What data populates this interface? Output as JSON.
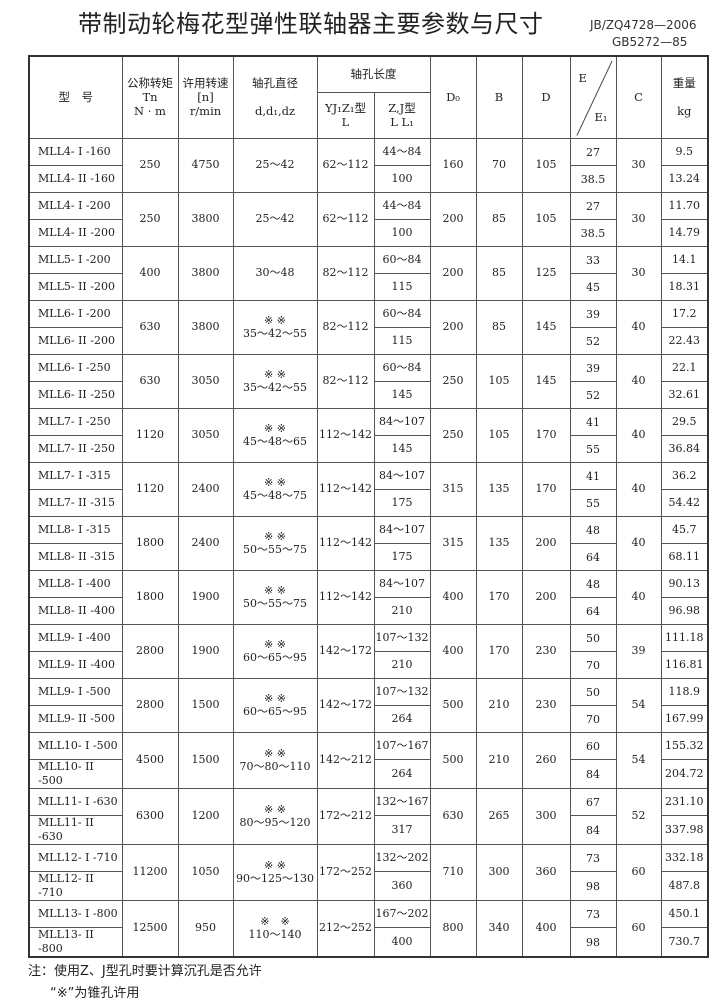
{
  "title": "带制动轮梅花型弹性联轴器主要参数与尺寸",
  "standards": [
    "JB/ZQ4728—2006",
    "GB5272—85"
  ],
  "headers": {
    "model": "型　号",
    "torque": [
      "公称转矩",
      "Tn",
      "N · m"
    ],
    "speed": [
      "许用转速",
      "[n]",
      "r/min"
    ],
    "bore": [
      "轴孔直径",
      "d,d₁,dz"
    ],
    "length": "轴孔长度",
    "yj": [
      "YJ₁Z₁型",
      "L"
    ],
    "zj": [
      "Z,J型",
      "L L₁"
    ],
    "d0": "D₀",
    "b": "B",
    "d": "D",
    "e": [
      "E",
      "E₁"
    ],
    "c": "C",
    "weight": [
      "重量",
      "kg"
    ]
  },
  "groups": [
    {
      "models": [
        "MLL4- I -160",
        "MLL4- II -160"
      ],
      "torque": "250",
      "speed": "4750",
      "bore_mark": "",
      "bore": "25～42",
      "yj": "62～112",
      "zj": [
        "44～84",
        "100"
      ],
      "d0": "160",
      "b": "70",
      "d": "105",
      "e": [
        "27",
        "38.5"
      ],
      "c": "30",
      "weight": [
        "9.5",
        "13.24"
      ]
    },
    {
      "models": [
        "MLL4- I -200",
        "MLL4- II -200"
      ],
      "torque": "250",
      "speed": "3800",
      "bore_mark": "",
      "bore": "25～42",
      "yj": "62～112",
      "zj": [
        "44～84",
        "100"
      ],
      "d0": "200",
      "b": "85",
      "d": "105",
      "e": [
        "27",
        "38.5"
      ],
      "c": "30",
      "weight": [
        "11.70",
        "14.79"
      ]
    },
    {
      "models": [
        "MLL5- I -200",
        "MLL5- II -200"
      ],
      "torque": "400",
      "speed": "3800",
      "bore_mark": "",
      "bore": "30～48",
      "yj": "82～112",
      "zj": [
        "60～84",
        "115"
      ],
      "d0": "200",
      "b": "85",
      "d": "125",
      "e": [
        "33",
        "45"
      ],
      "c": "30",
      "weight": [
        "14.1",
        "18.31"
      ]
    },
    {
      "models": [
        "MLL6- I -200",
        "MLL6- II -200"
      ],
      "torque": "630",
      "speed": "3800",
      "bore_mark": "※ ※",
      "bore": "35～42～55",
      "yj": "82～112",
      "zj": [
        "60～84",
        "115"
      ],
      "d0": "200",
      "b": "85",
      "d": "145",
      "e": [
        "39",
        "52"
      ],
      "c": "40",
      "weight": [
        "17.2",
        "22.43"
      ]
    },
    {
      "models": [
        "MLL6- I -250",
        "MLL6- II -250"
      ],
      "torque": "630",
      "speed": "3050",
      "bore_mark": "※ ※",
      "bore": "35～42～55",
      "yj": "82～112",
      "zj": [
        "60～84",
        "145"
      ],
      "d0": "250",
      "b": "105",
      "d": "145",
      "e": [
        "39",
        "52"
      ],
      "c": "40",
      "weight": [
        "22.1",
        "32.61"
      ]
    },
    {
      "models": [
        "MLL7- I -250",
        "MLL7- II -250"
      ],
      "torque": "1120",
      "speed": "3050",
      "bore_mark": "※ ※",
      "bore": "45～48～65",
      "yj": "112～142",
      "zj": [
        "84～107",
        "145"
      ],
      "d0": "250",
      "b": "105",
      "d": "170",
      "e": [
        "41",
        "55"
      ],
      "c": "40",
      "weight": [
        "29.5",
        "36.84"
      ]
    },
    {
      "models": [
        "MLL7- I -315",
        "MLL7- II -315"
      ],
      "torque": "1120",
      "speed": "2400",
      "bore_mark": "※ ※",
      "bore": "45～48～75",
      "yj": "112～142",
      "zj": [
        "84～107",
        "175"
      ],
      "d0": "315",
      "b": "135",
      "d": "170",
      "e": [
        "41",
        "55"
      ],
      "c": "40",
      "weight": [
        "36.2",
        "54.42"
      ]
    },
    {
      "models": [
        "MLL8- I -315",
        "MLL8- II -315"
      ],
      "torque": "1800",
      "speed": "2400",
      "bore_mark": "※ ※",
      "bore": "50～55～75",
      "yj": "112～142",
      "zj": [
        "84～107",
        "175"
      ],
      "d0": "315",
      "b": "135",
      "d": "200",
      "e": [
        "48",
        "64"
      ],
      "c": "40",
      "weight": [
        "45.7",
        "68.11"
      ]
    },
    {
      "models": [
        "MLL8- I -400",
        "MLL8- II -400"
      ],
      "torque": "1800",
      "speed": "1900",
      "bore_mark": "※ ※",
      "bore": "50～55～75",
      "yj": "112～142",
      "zj": [
        "84～107",
        "210"
      ],
      "d0": "400",
      "b": "170",
      "d": "200",
      "e": [
        "48",
        "64"
      ],
      "c": "40",
      "weight": [
        "90.13",
        "96.98"
      ]
    },
    {
      "models": [
        "MLL9- I -400",
        "MLL9- II -400"
      ],
      "torque": "2800",
      "speed": "1900",
      "bore_mark": "※ ※",
      "bore": "60～65～95",
      "yj": "142～172",
      "zj": [
        "107～132",
        "210"
      ],
      "d0": "400",
      "b": "170",
      "d": "230",
      "e": [
        "50",
        "70"
      ],
      "c": "39",
      "weight": [
        "111.18",
        "116.81"
      ]
    },
    {
      "models": [
        "MLL9- I -500",
        "MLL9- II -500"
      ],
      "torque": "2800",
      "speed": "1500",
      "bore_mark": "※ ※",
      "bore": "60～65～95",
      "yj": "142～172",
      "zj": [
        "107～132",
        "264"
      ],
      "d0": "500",
      "b": "210",
      "d": "230",
      "e": [
        "50",
        "70"
      ],
      "c": "54",
      "weight": [
        "118.9",
        "167.99"
      ]
    },
    {
      "models": [
        "MLL10- I -500",
        "MLL10- II -500"
      ],
      "torque": "4500",
      "speed": "1500",
      "bore_mark": "※ ※",
      "bore": "70～80～110",
      "yj": "142～212",
      "zj": [
        "107～167",
        "264"
      ],
      "d0": "500",
      "b": "210",
      "d": "260",
      "e": [
        "60",
        "84"
      ],
      "c": "54",
      "weight": [
        "155.32",
        "204.72"
      ]
    },
    {
      "models": [
        "MLL11- I -630",
        "MLL11- II -630"
      ],
      "torque": "6300",
      "speed": "1200",
      "bore_mark": "※ ※",
      "bore": "80～95～120",
      "yj": "172～212",
      "zj": [
        "132～167",
        "317"
      ],
      "d0": "630",
      "b": "265",
      "d": "300",
      "e": [
        "67",
        "84"
      ],
      "c": "52",
      "weight": [
        "231.10",
        "337.98"
      ]
    },
    {
      "models": [
        "MLL12- I -710",
        "MLL12- II -710"
      ],
      "torque": "11200",
      "speed": "1050",
      "bore_mark": "※ ※",
      "bore": "90～125～130",
      "yj": "172～252",
      "zj": [
        "132～202",
        "360"
      ],
      "d0": "710",
      "b": "300",
      "d": "360",
      "e": [
        "73",
        "98"
      ],
      "c": "60",
      "weight": [
        "332.18",
        "487.8"
      ]
    },
    {
      "models": [
        "MLL13- I -800",
        "MLL13- II -800"
      ],
      "torque": "12500",
      "speed": "950",
      "bore_mark": "※　※",
      "bore": "110～140",
      "yj": "212～252",
      "zj": [
        "167～202",
        "400"
      ],
      "d0": "800",
      "b": "340",
      "d": "400",
      "e": [
        "73",
        "98"
      ],
      "c": "60",
      "weight": [
        "450.1",
        "730.7"
      ]
    }
  ],
  "notes": [
    "注：使用Z、J型孔时要计算沉孔是否允许",
    "“※”为锥孔许用"
  ]
}
